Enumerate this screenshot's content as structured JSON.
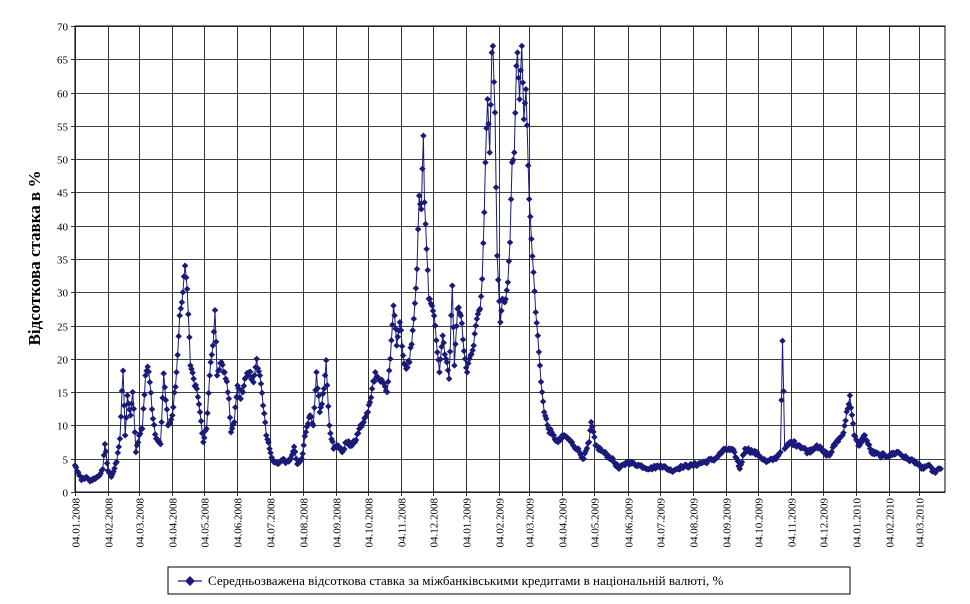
{
  "chart_data": {
    "type": "line",
    "title": "",
    "xlabel": "",
    "ylabel": "Відсоткова ставка в %",
    "ylim": [
      0,
      70
    ],
    "ytick_step": 5,
    "grid": true,
    "legend": "bottom",
    "series_color": "#1a1a7a",
    "series": [
      {
        "name": "Середньозважена відсоткова ставка за міжбанківськими кредитами в національній валюті, %",
        "anchors": [
          [
            "2008-01-04",
            4.0
          ],
          [
            "2008-01-08",
            2.5
          ],
          [
            "2008-01-10",
            1.8
          ],
          [
            "2008-01-14",
            2.2
          ],
          [
            "2008-01-18",
            1.6
          ],
          [
            "2008-01-22",
            2.0
          ],
          [
            "2008-01-25",
            2.3
          ],
          [
            "2008-01-28",
            2.8
          ],
          [
            "2008-01-30",
            3.4
          ],
          [
            "2008-02-01",
            7.2
          ],
          [
            "2008-02-04",
            3.2
          ],
          [
            "2008-02-07",
            2.3
          ],
          [
            "2008-02-12",
            4.5
          ],
          [
            "2008-02-15",
            8.0
          ],
          [
            "2008-02-18",
            18.2
          ],
          [
            "2008-02-20",
            8.5
          ],
          [
            "2008-02-22",
            14.5
          ],
          [
            "2008-02-25",
            11.5
          ],
          [
            "2008-02-27",
            15.0
          ],
          [
            "2008-03-01",
            6.0
          ],
          [
            "2008-03-04",
            8.5
          ],
          [
            "2008-03-07",
            9.5
          ],
          [
            "2008-03-10",
            17.5
          ],
          [
            "2008-03-12",
            18.8
          ],
          [
            "2008-03-14",
            16.5
          ],
          [
            "2008-03-17",
            11.0
          ],
          [
            "2008-03-20",
            8.0
          ],
          [
            "2008-03-24",
            7.2
          ],
          [
            "2008-03-27",
            17.8
          ],
          [
            "2008-03-31",
            10.0
          ],
          [
            "2008-04-04",
            11.5
          ],
          [
            "2008-04-08",
            18.0
          ],
          [
            "2008-04-11",
            26.5
          ],
          [
            "2008-04-14",
            30.0
          ],
          [
            "2008-04-16",
            34.0
          ],
          [
            "2008-04-18",
            30.5
          ],
          [
            "2008-04-21",
            19.0
          ],
          [
            "2008-04-24",
            17.0
          ],
          [
            "2008-04-27",
            15.5
          ],
          [
            "2008-04-30",
            12.0
          ],
          [
            "2008-05-03",
            7.5
          ],
          [
            "2008-05-06",
            9.5
          ],
          [
            "2008-05-09",
            17.5
          ],
          [
            "2008-05-12",
            22.0
          ],
          [
            "2008-05-14",
            27.3
          ],
          [
            "2008-05-16",
            17.5
          ],
          [
            "2008-05-20",
            19.5
          ],
          [
            "2008-05-24",
            17.0
          ],
          [
            "2008-05-27",
            14.0
          ],
          [
            "2008-05-29",
            9.0
          ],
          [
            "2008-06-01",
            10.5
          ],
          [
            "2008-06-04",
            16.0
          ],
          [
            "2008-06-07",
            14.0
          ],
          [
            "2008-06-11",
            17.0
          ],
          [
            "2008-06-15",
            18.0
          ],
          [
            "2008-06-19",
            16.5
          ],
          [
            "2008-06-22",
            20.0
          ],
          [
            "2008-06-25",
            17.5
          ],
          [
            "2008-06-28",
            13.0
          ],
          [
            "2008-07-01",
            8.5
          ],
          [
            "2008-07-04",
            6.5
          ],
          [
            "2008-07-08",
            4.5
          ],
          [
            "2008-07-12",
            4.2
          ],
          [
            "2008-07-16",
            4.8
          ],
          [
            "2008-07-20",
            4.5
          ],
          [
            "2008-07-24",
            5.0
          ],
          [
            "2008-07-27",
            6.8
          ],
          [
            "2008-07-30",
            4.2
          ],
          [
            "2008-08-03",
            5.0
          ],
          [
            "2008-08-07",
            9.0
          ],
          [
            "2008-08-11",
            11.5
          ],
          [
            "2008-08-14",
            10.0
          ],
          [
            "2008-08-17",
            18.0
          ],
          [
            "2008-08-20",
            12.0
          ],
          [
            "2008-08-24",
            15.5
          ],
          [
            "2008-08-26",
            19.8
          ],
          [
            "2008-08-29",
            10.0
          ],
          [
            "2008-09-02",
            6.5
          ],
          [
            "2008-09-06",
            7.0
          ],
          [
            "2008-09-10",
            6.0
          ],
          [
            "2008-09-14",
            7.5
          ],
          [
            "2008-09-18",
            7.0
          ],
          [
            "2008-09-22",
            7.5
          ],
          [
            "2008-09-26",
            9.5
          ],
          [
            "2008-09-30",
            10.5
          ],
          [
            "2008-10-04",
            12.0
          ],
          [
            "2008-10-08",
            15.5
          ],
          [
            "2008-10-11",
            18.0
          ],
          [
            "2008-10-14",
            17.0
          ],
          [
            "2008-10-18",
            16.5
          ],
          [
            "2008-10-22",
            15.0
          ],
          [
            "2008-10-25",
            20.0
          ],
          [
            "2008-10-28",
            28.0
          ],
          [
            "2008-10-31",
            22.0
          ],
          [
            "2008-11-03",
            25.5
          ],
          [
            "2008-11-06",
            20.5
          ],
          [
            "2008-11-09",
            18.5
          ],
          [
            "2008-11-12",
            19.5
          ],
          [
            "2008-11-16",
            26.0
          ],
          [
            "2008-11-19",
            33.5
          ],
          [
            "2008-11-21",
            44.5
          ],
          [
            "2008-11-23",
            42.5
          ],
          [
            "2008-11-25",
            53.5
          ],
          [
            "2008-11-26",
            43.5
          ],
          [
            "2008-11-28",
            36.5
          ],
          [
            "2008-11-30",
            29.0
          ],
          [
            "2008-12-03",
            28.0
          ],
          [
            "2008-12-06",
            25.0
          ],
          [
            "2008-12-08",
            21.0
          ],
          [
            "2008-12-10",
            18.0
          ],
          [
            "2008-12-13",
            23.5
          ],
          [
            "2008-12-16",
            20.0
          ],
          [
            "2008-12-19",
            17.0
          ],
          [
            "2008-12-22",
            31.0
          ],
          [
            "2008-12-24",
            19.0
          ],
          [
            "2008-12-27",
            27.5
          ],
          [
            "2008-12-30",
            26.5
          ],
          [
            "2009-01-03",
            20.0
          ],
          [
            "2009-01-05",
            18.0
          ],
          [
            "2009-01-08",
            20.5
          ],
          [
            "2009-01-11",
            22.0
          ],
          [
            "2009-01-14",
            26.0
          ],
          [
            "2009-01-17",
            27.5
          ],
          [
            "2009-01-19",
            32.0
          ],
          [
            "2009-01-21",
            42.0
          ],
          [
            "2009-01-22",
            49.5
          ],
          [
            "2009-01-24",
            59.0
          ],
          [
            "2009-01-26",
            51.0
          ],
          [
            "2009-01-28",
            66.0
          ],
          [
            "2009-01-29",
            67.0
          ],
          [
            "2009-01-31",
            57.0
          ],
          [
            "2009-02-02",
            35.5
          ],
          [
            "2009-02-05",
            25.5
          ],
          [
            "2009-02-07",
            29.0
          ],
          [
            "2009-02-09",
            28.5
          ],
          [
            "2009-02-12",
            31.5
          ],
          [
            "2009-02-14",
            37.5
          ],
          [
            "2009-02-16",
            49.5
          ],
          [
            "2009-02-18",
            51.0
          ],
          [
            "2009-02-20",
            64.0
          ],
          [
            "2009-02-21",
            66.0
          ],
          [
            "2009-02-23",
            59.0
          ],
          [
            "2009-02-25",
            67.0
          ],
          [
            "2009-02-27",
            56.0
          ],
          [
            "2009-03-01",
            60.5
          ],
          [
            "2009-03-04",
            44.0
          ],
          [
            "2009-03-06",
            38.0
          ],
          [
            "2009-03-08",
            33.0
          ],
          [
            "2009-03-10",
            27.0
          ],
          [
            "2009-03-12",
            23.5
          ],
          [
            "2009-03-14",
            19.0
          ],
          [
            "2009-03-16",
            15.0
          ],
          [
            "2009-03-18",
            12.0
          ],
          [
            "2009-03-22",
            9.5
          ],
          [
            "2009-03-26",
            8.5
          ],
          [
            "2009-03-31",
            7.5
          ],
          [
            "2009-04-06",
            8.5
          ],
          [
            "2009-04-12",
            7.5
          ],
          [
            "2009-04-18",
            6.5
          ],
          [
            "2009-04-24",
            5.0
          ],
          [
            "2009-04-29",
            7.5
          ],
          [
            "2009-05-01",
            10.5
          ],
          [
            "2009-05-05",
            7.0
          ],
          [
            "2009-05-12",
            6.0
          ],
          [
            "2009-05-20",
            5.0
          ],
          [
            "2009-05-27",
            3.5
          ],
          [
            "2009-06-04",
            4.5
          ],
          [
            "2009-06-15",
            4.0
          ],
          [
            "2009-06-25",
            3.5
          ],
          [
            "2009-07-05",
            4.0
          ],
          [
            "2009-07-15",
            3.2
          ],
          [
            "2009-07-25",
            3.8
          ],
          [
            "2009-08-04",
            4.0
          ],
          [
            "2009-08-15",
            4.5
          ],
          [
            "2009-08-25",
            5.0
          ],
          [
            "2009-09-04",
            6.5
          ],
          [
            "2009-09-12",
            6.0
          ],
          [
            "2009-09-17",
            3.5
          ],
          [
            "2009-09-22",
            6.5
          ],
          [
            "2009-09-30",
            6.0
          ],
          [
            "2009-10-05",
            5.5
          ],
          [
            "2009-10-12",
            4.5
          ],
          [
            "2009-10-20",
            5.0
          ],
          [
            "2009-10-25",
            6.0
          ],
          [
            "2009-10-27",
            22.7
          ],
          [
            "2009-10-29",
            6.5
          ],
          [
            "2009-11-04",
            7.5
          ],
          [
            "2009-11-12",
            7.0
          ],
          [
            "2009-11-20",
            6.0
          ],
          [
            "2009-11-28",
            7.0
          ],
          [
            "2009-12-04",
            6.0
          ],
          [
            "2009-12-10",
            5.5
          ],
          [
            "2009-12-16",
            7.5
          ],
          [
            "2009-12-22",
            8.5
          ],
          [
            "2009-12-27",
            12.5
          ],
          [
            "2009-12-29",
            14.5
          ],
          [
            "2010-01-02",
            8.5
          ],
          [
            "2010-01-06",
            7.0
          ],
          [
            "2010-01-12",
            8.5
          ],
          [
            "2010-01-18",
            6.0
          ],
          [
            "2010-01-26",
            5.5
          ],
          [
            "2010-02-04",
            5.5
          ],
          [
            "2010-02-12",
            6.0
          ],
          [
            "2010-02-20",
            5.0
          ],
          [
            "2010-03-01",
            4.5
          ],
          [
            "2010-03-06",
            3.5
          ],
          [
            "2010-03-12",
            4.0
          ],
          [
            "2010-03-18",
            3.0
          ],
          [
            "2010-03-24",
            3.5
          ]
        ]
      }
    ],
    "x_ticks": [
      "04.01.2008",
      "04.02.2008",
      "04.03.2008",
      "04.04.2008",
      "04.05.2008",
      "04.06.2008",
      "04.07.2008",
      "04.08.2008",
      "04.09.2008",
      "04.10.2008",
      "04.11.2008",
      "04.12.2008",
      "04.01.2009",
      "04.02.2009",
      "04.03.2009",
      "04.04.2009",
      "04.05.2009",
      "04.06.2009",
      "04.07.2009",
      "04.08.2009",
      "04.09.2009",
      "04.10.2009",
      "04.11.2009",
      "04.12.2009",
      "04.01.2010",
      "04.02.2010",
      "04.03.2010"
    ],
    "xlim": [
      "2008-01-04",
      "2010-03-28"
    ]
  }
}
